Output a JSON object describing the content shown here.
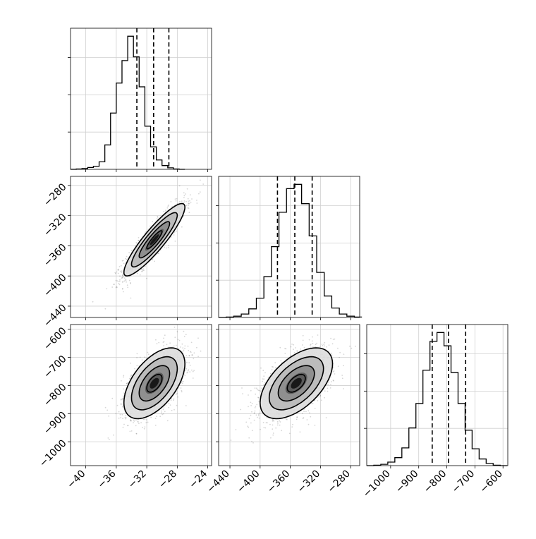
{
  "chart_data": {
    "type": "corner",
    "title": "",
    "grid": true,
    "parameters": [
      {
        "xlim": [
          -42,
          -23.5
        ],
        "xticks": [
          -40,
          -36,
          -32,
          -28,
          -24
        ],
        "xtick_labels": [
          "−40",
          "−36",
          "−32",
          "−28",
          "−24"
        ],
        "quantiles": [
          -33.3,
          -31.1,
          -29.1
        ],
        "histogram": {
          "bin_start": -42,
          "bin_width": 0.75,
          "counts": [
            0,
            1,
            2,
            5,
            8,
            20,
            65,
            150,
            230,
            290,
            355,
            300,
            220,
            115,
            60,
            25,
            10,
            4,
            1,
            0
          ]
        }
      },
      {
        "xlim": [
          -455,
          -268
        ],
        "xticks": [
          -440,
          -400,
          -360,
          -320,
          -280
        ],
        "xtick_labels": [
          "−440",
          "−400",
          "−360",
          "−320",
          "−280"
        ],
        "yticks": [
          -280,
          -320,
          -360,
          -400,
          -440
        ],
        "ytick_labels": [
          "−280",
          "−320",
          "−360",
          "−400",
          "−440"
        ],
        "quantiles": [
          -377,
          -354,
          -331
        ],
        "histogram": {
          "bin_start": -455,
          "bin_width": 10,
          "counts": [
            0,
            1,
            3,
            8,
            20,
            45,
            95,
            165,
            245,
            300,
            310,
            265,
            190,
            105,
            50,
            22,
            8,
            3,
            1
          ]
        }
      },
      {
        "xlim": [
          -1085,
          -583
        ],
        "xticks": [
          -1000,
          -900,
          -800,
          -700,
          -600
        ],
        "xtick_labels": [
          "−1000",
          "−900",
          "−800",
          "−700",
          "−600"
        ],
        "yticks": [
          -600,
          -700,
          -800,
          -900,
          -1000
        ],
        "ytick_labels": [
          "−600",
          "−700",
          "−800",
          "−900",
          "−1000"
        ],
        "quantiles": [
          -852,
          -794,
          -733
        ],
        "histogram": {
          "bin_start": -1085,
          "bin_width": 25,
          "counts": [
            0,
            1,
            3,
            8,
            18,
            40,
            85,
            140,
            215,
            280,
            300,
            270,
            210,
            140,
            80,
            38,
            15,
            5,
            1,
            0
          ]
        }
      }
    ],
    "pairs": [
      {
        "x_param": 0,
        "y_param": 1,
        "mean": [
          -31.0,
          -352
        ],
        "std": [
          2.0,
          24
        ],
        "corr": 0.9
      },
      {
        "x_param": 0,
        "y_param": 2,
        "mean": [
          -31.0,
          -792
        ],
        "std": [
          2.0,
          63
        ],
        "corr": 0.55
      },
      {
        "x_param": 1,
        "y_param": 2,
        "mean": [
          -352,
          -792
        ],
        "std": [
          24,
          63
        ],
        "corr": 0.55
      }
    ],
    "contour_levels": [
      0.5,
      1.0,
      1.5,
      2.0
    ]
  }
}
